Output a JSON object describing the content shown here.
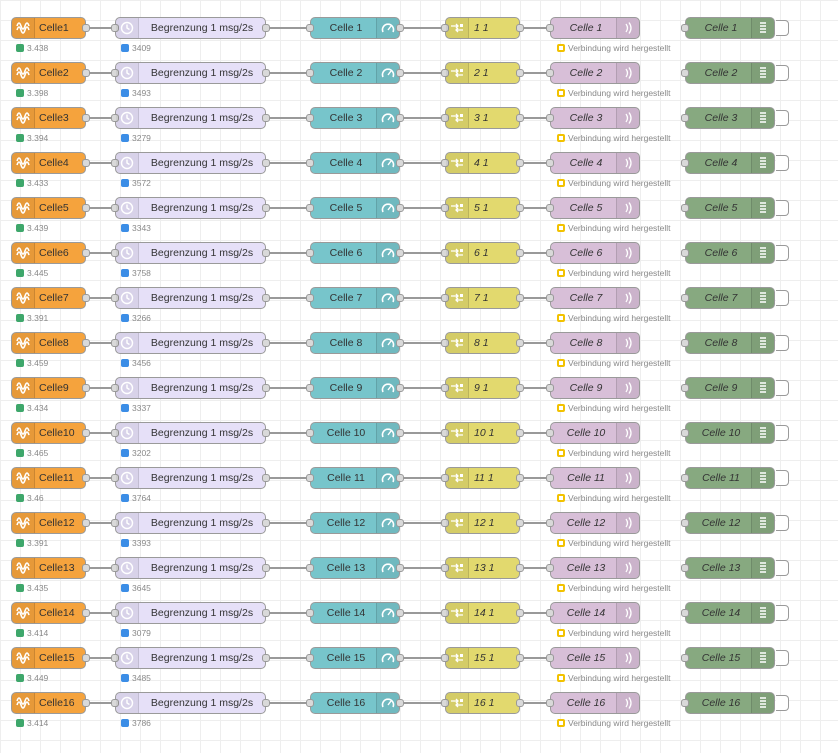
{
  "colors": {
    "source": "#f5a33d",
    "delay": "#e6e0f8",
    "gauge": "#77c5cb",
    "change": "#e2d96e",
    "mqtt": "#d8bfd8",
    "debug": "#87a980",
    "status_green": "#3ea76b",
    "status_blue": "#3b8de6",
    "status_yellow": "#f2c200",
    "wire": "#999999"
  },
  "icons": {
    "source": "victron-wave-icon",
    "delay": "timer-icon",
    "gauge": "gauge-icon",
    "change": "change-arrows-icon",
    "mqtt": "radio-waves-icon",
    "debug": "debug-list-icon"
  },
  "rows": [
    {
      "source": "Celle1",
      "source_status": "3.438",
      "delay": "Begrenzung 1 msg/2s",
      "delay_status": "3409",
      "gauge": "Celle 1",
      "change": "1 1",
      "mqtt": "Celle 1",
      "mqtt_status": "Verbindung wird hergestellt",
      "debug": "Celle 1"
    },
    {
      "source": "Celle2",
      "source_status": "3.398",
      "delay": "Begrenzung 1 msg/2s",
      "delay_status": "3493",
      "gauge": "Celle 2",
      "change": "2 1",
      "mqtt": "Celle 2",
      "mqtt_status": "Verbindung wird hergestellt",
      "debug": "Celle 2"
    },
    {
      "source": "Celle3",
      "source_status": "3.394",
      "delay": "Begrenzung 1 msg/2s",
      "delay_status": "3279",
      "gauge": "Celle 3",
      "change": "3 1",
      "mqtt": "Celle 3",
      "mqtt_status": "Verbindung wird hergestellt",
      "debug": "Celle 3"
    },
    {
      "source": "Celle4",
      "source_status": "3.433",
      "delay": "Begrenzung 1 msg/2s",
      "delay_status": "3572",
      "gauge": "Celle 4",
      "change": "4 1",
      "mqtt": "Celle 4",
      "mqtt_status": "Verbindung wird hergestellt",
      "debug": "Celle 4"
    },
    {
      "source": "Celle5",
      "source_status": "3.439",
      "delay": "Begrenzung 1 msg/2s",
      "delay_status": "3343",
      "gauge": "Celle 5",
      "change": "5 1",
      "mqtt": "Celle 5",
      "mqtt_status": "Verbindung wird hergestellt",
      "debug": "Celle 5"
    },
    {
      "source": "Celle6",
      "source_status": "3.445",
      "delay": "Begrenzung 1 msg/2s",
      "delay_status": "3758",
      "gauge": "Celle 6",
      "change": "6 1",
      "mqtt": "Celle 6",
      "mqtt_status": "Verbindung wird hergestellt",
      "debug": "Celle 6"
    },
    {
      "source": "Celle7",
      "source_status": "3.391",
      "delay": "Begrenzung 1 msg/2s",
      "delay_status": "3266",
      "gauge": "Celle 7",
      "change": "7 1",
      "mqtt": "Celle 7",
      "mqtt_status": "Verbindung wird hergestellt",
      "debug": "Celle 7"
    },
    {
      "source": "Celle8",
      "source_status": "3.459",
      "delay": "Begrenzung 1 msg/2s",
      "delay_status": "3456",
      "gauge": "Celle 8",
      "change": "8 1",
      "mqtt": "Celle 8",
      "mqtt_status": "Verbindung wird hergestellt",
      "debug": "Celle 8"
    },
    {
      "source": "Celle9",
      "source_status": "3.434",
      "delay": "Begrenzung 1 msg/2s",
      "delay_status": "3337",
      "gauge": "Celle 9",
      "change": "9 1",
      "mqtt": "Celle 9",
      "mqtt_status": "Verbindung wird hergestellt",
      "debug": "Celle 9"
    },
    {
      "source": "Celle10",
      "source_status": "3.465",
      "delay": "Begrenzung 1 msg/2s",
      "delay_status": "3202",
      "gauge": "Celle 10",
      "change": "10 1",
      "mqtt": "Celle 10",
      "mqtt_status": "Verbindung wird hergestellt",
      "debug": "Celle 10"
    },
    {
      "source": "Celle11",
      "source_status": "3.46",
      "delay": "Begrenzung 1 msg/2s",
      "delay_status": "3764",
      "gauge": "Celle 11",
      "change": "11 1",
      "mqtt": "Celle 11",
      "mqtt_status": "Verbindung wird hergestellt",
      "debug": "Celle 11"
    },
    {
      "source": "Celle12",
      "source_status": "3.391",
      "delay": "Begrenzung 1 msg/2s",
      "delay_status": "3393",
      "gauge": "Celle 12",
      "change": "12 1",
      "mqtt": "Celle 12",
      "mqtt_status": "Verbindung wird hergestellt",
      "debug": "Celle 12"
    },
    {
      "source": "Celle13",
      "source_status": "3.435",
      "delay": "Begrenzung 1 msg/2s",
      "delay_status": "3645",
      "gauge": "Celle 13",
      "change": "13 1",
      "mqtt": "Celle 13",
      "mqtt_status": "Verbindung wird hergestellt",
      "debug": "Celle 13"
    },
    {
      "source": "Celle14",
      "source_status": "3.414",
      "delay": "Begrenzung 1 msg/2s",
      "delay_status": "3079",
      "gauge": "Celle 14",
      "change": "14 1",
      "mqtt": "Celle 14",
      "mqtt_status": "Verbindung wird hergestellt",
      "debug": "Celle 14"
    },
    {
      "source": "Celle15",
      "source_status": "3.449",
      "delay": "Begrenzung 1 msg/2s",
      "delay_status": "3485",
      "gauge": "Celle 15",
      "change": "15 1",
      "mqtt": "Celle 15",
      "mqtt_status": "Verbindung wird hergestellt",
      "debug": "Celle 15"
    },
    {
      "source": "Celle16",
      "source_status": "3.414",
      "delay": "Begrenzung 1 msg/2s",
      "delay_status": "3786",
      "gauge": "Celle 16",
      "change": "16 1",
      "mqtt": "Celle 16",
      "mqtt_status": "Verbindung wird hergestellt",
      "debug": "Celle 16"
    }
  ]
}
